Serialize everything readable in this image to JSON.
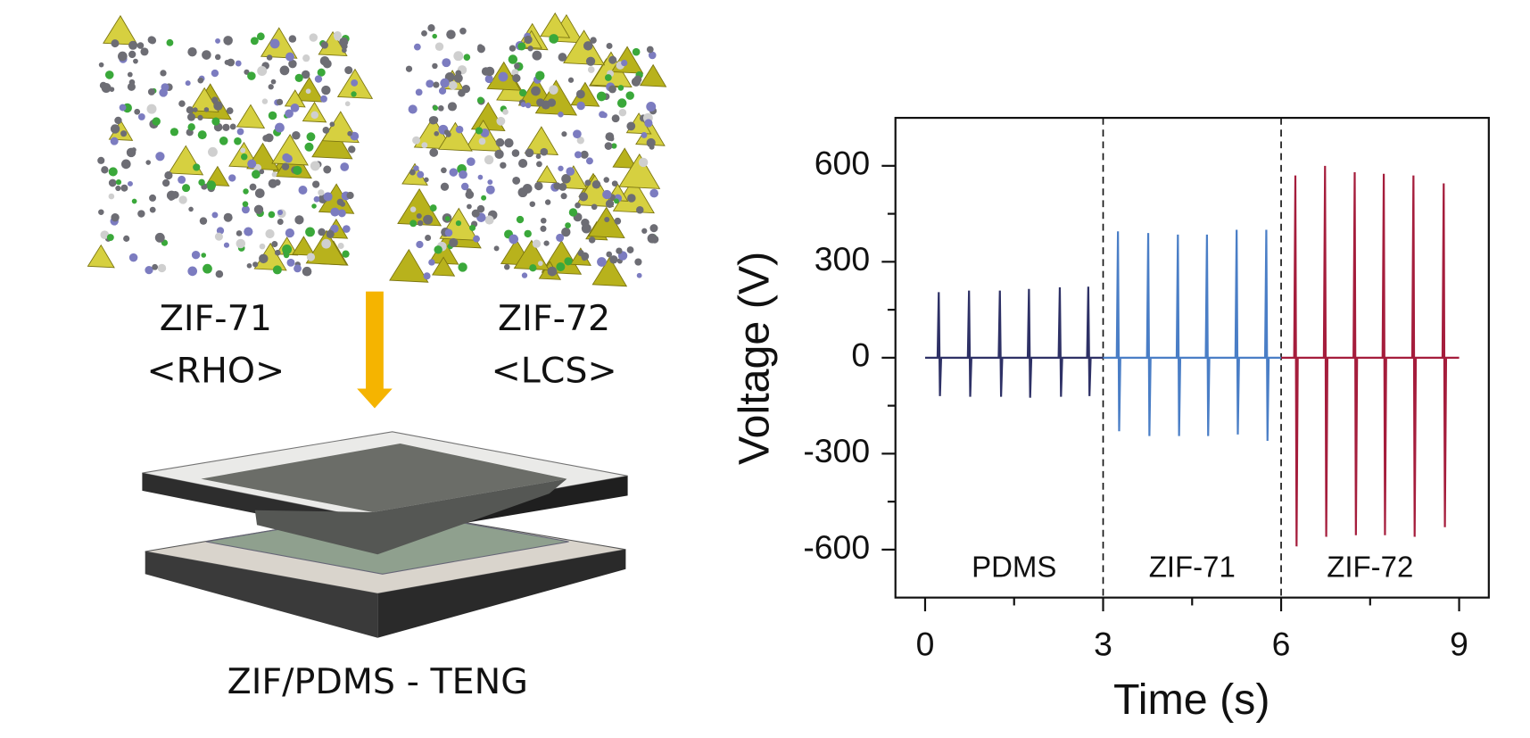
{
  "illustration": {
    "zif71": {
      "name": "ZIF-71",
      "topology": "<RHO>"
    },
    "zif72": {
      "name": "ZIF-72",
      "topology": "<LCS>"
    },
    "device": "ZIF/PDMS - TENG"
  },
  "chart_data": {
    "type": "line",
    "xlabel": "Time (s)",
    "ylabel": "Voltage (V)",
    "xlim": [
      -0.5,
      9.5
    ],
    "ylim": [
      -750,
      750
    ],
    "xticks": [
      0,
      3,
      6,
      9
    ],
    "yticks": [
      -600,
      -300,
      0,
      300,
      600
    ],
    "xminor": [
      1.5,
      4.5,
      7.5
    ],
    "yminor": [
      -450,
      -150,
      150,
      450
    ],
    "dividers": [
      3,
      6
    ],
    "series": [
      {
        "name": "PDMS",
        "color": "#2e3166",
        "x": [
          0,
          0.21,
          0.23,
          0.25,
          0.27,
          0.72,
          0.74,
          0.76,
          0.78,
          1.24,
          1.26,
          1.28,
          1.3,
          1.73,
          1.75,
          1.77,
          1.79,
          2.25,
          2.27,
          2.29,
          2.31,
          2.73,
          2.75,
          2.77,
          2.79,
          3
        ],
        "values": [
          0,
          0,
          205,
          -120,
          0,
          0,
          210,
          -122,
          0,
          0,
          210,
          -122,
          0,
          0,
          215,
          -125,
          0,
          0,
          220,
          -122,
          0,
          0,
          222,
          -120,
          0,
          0
        ]
      },
      {
        "name": "ZIF-71",
        "color": "#4a7ec6",
        "x": [
          3,
          3.23,
          3.25,
          3.27,
          3.29,
          3.74,
          3.76,
          3.78,
          3.8,
          4.24,
          4.26,
          4.28,
          4.3,
          4.73,
          4.75,
          4.77,
          4.79,
          5.23,
          5.25,
          5.27,
          5.29,
          5.73,
          5.75,
          5.77,
          5.79,
          6
        ],
        "values": [
          0,
          0,
          395,
          -230,
          0,
          0,
          390,
          -245,
          0,
          0,
          385,
          -245,
          0,
          0,
          385,
          -245,
          0,
          0,
          400,
          -240,
          0,
          0,
          400,
          -260,
          0,
          0
        ]
      },
      {
        "name": "ZIF-72",
        "color": "#a51d3c",
        "x": [
          6,
          6.22,
          6.24,
          6.26,
          6.28,
          6.72,
          6.74,
          6.76,
          6.78,
          7.22,
          7.24,
          7.26,
          7.28,
          7.71,
          7.73,
          7.75,
          7.77,
          8.21,
          8.23,
          8.25,
          8.27,
          8.72,
          8.74,
          8.76,
          8.78,
          9
        ],
        "values": [
          0,
          0,
          570,
          -590,
          0,
          0,
          600,
          -560,
          0,
          0,
          580,
          -555,
          0,
          0,
          575,
          -555,
          0,
          0,
          570,
          -560,
          0,
          0,
          545,
          -530,
          0,
          0
        ]
      }
    ]
  }
}
